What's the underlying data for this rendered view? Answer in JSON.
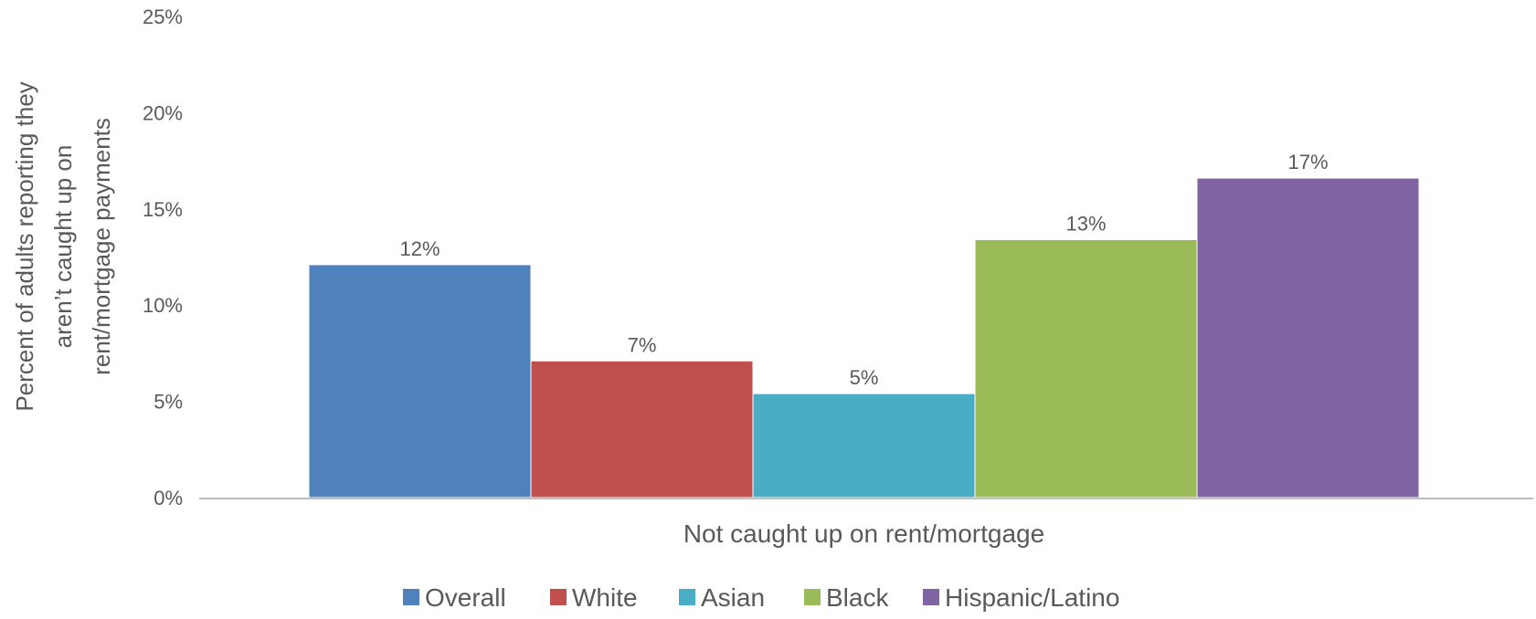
{
  "chart_data": {
    "type": "bar",
    "title": "",
    "categories": [
      "Not caught up on rent/mortgage"
    ],
    "xlabel": "Not caught up on rent/mortgage",
    "ylabel_lines": [
      "Percent of adults reporting they",
      "aren’t caught up on",
      "rent/mortgage payments"
    ],
    "ylim": [
      0,
      25
    ],
    "ytick_values": [
      0,
      5,
      10,
      15,
      20,
      25
    ],
    "ytick_labels": [
      "0%",
      "5%",
      "10%",
      "15%",
      "20%",
      "25%"
    ],
    "grid": false,
    "legend_position": "bottom",
    "series": [
      {
        "name": "Overall",
        "values": [
          12.1
        ],
        "label": "12%",
        "color": "#4f81bd"
      },
      {
        "name": "White",
        "values": [
          7.1
        ],
        "label": "7%",
        "color": "#c0504d"
      },
      {
        "name": "Asian",
        "values": [
          5.4
        ],
        "label": "5%",
        "color": "#4bacc6"
      },
      {
        "name": "Black",
        "values": [
          13.4
        ],
        "label": "13%",
        "color": "#9bbb59"
      },
      {
        "name": "Hispanic/Latino",
        "values": [
          16.6
        ],
        "label": "17%",
        "color": "#8064a2"
      }
    ],
    "colors": {
      "axis_line": "#bfbfbf",
      "text": "#595959"
    }
  }
}
